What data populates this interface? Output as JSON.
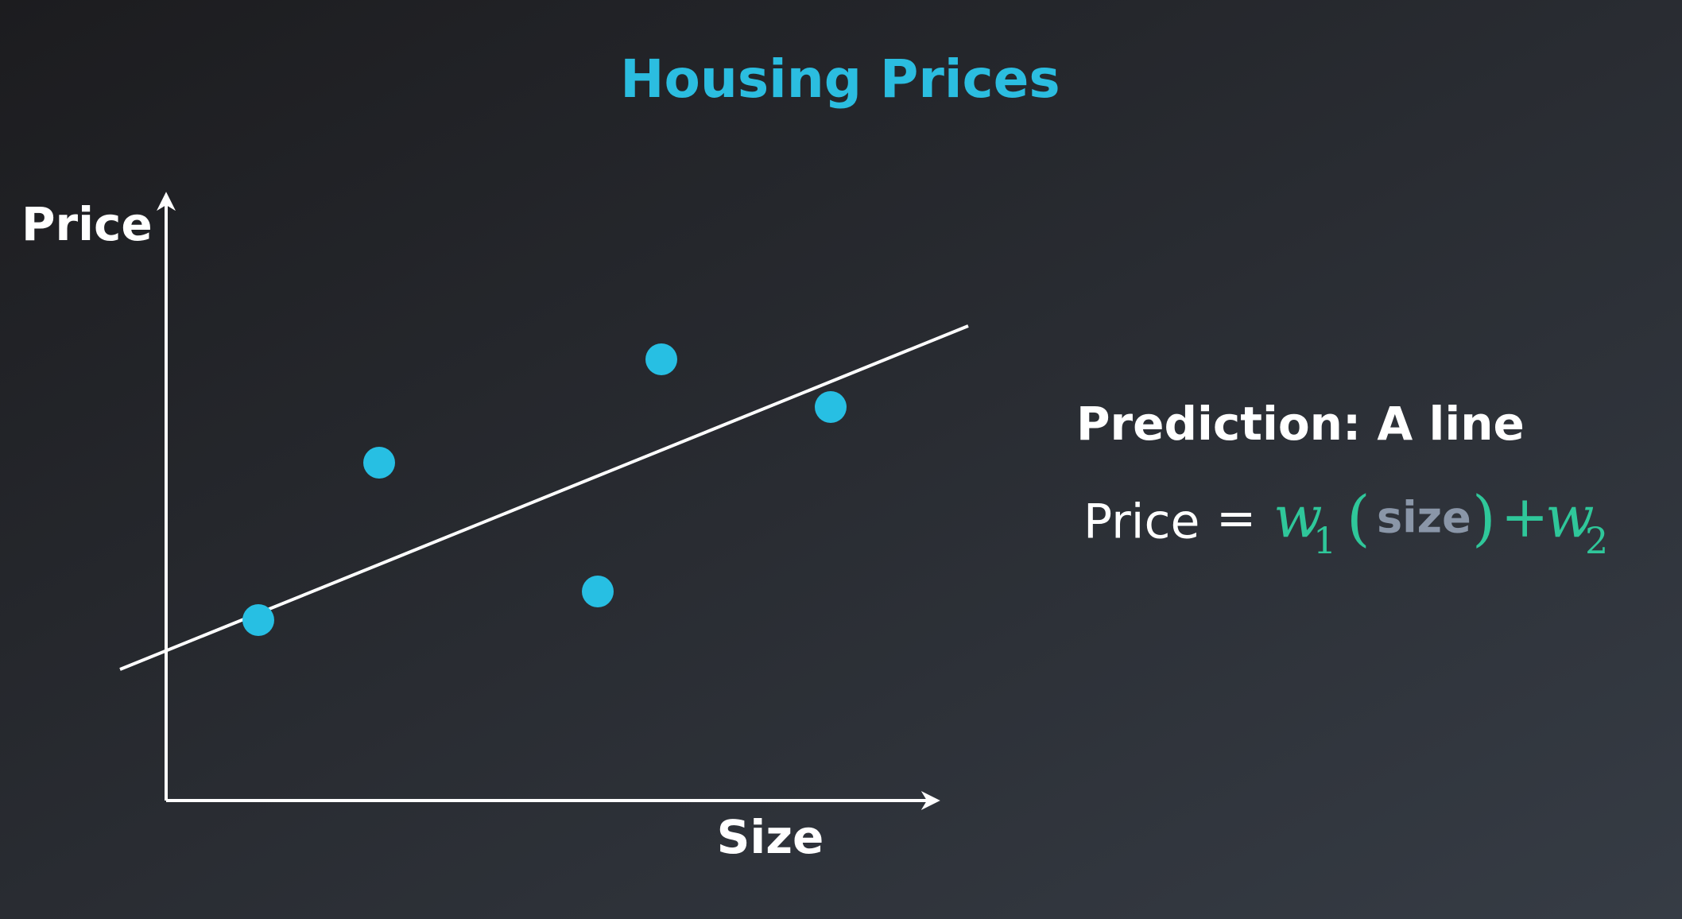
{
  "title": "Housing Prices",
  "axes": {
    "y_label": "Price",
    "x_label": "Size"
  },
  "annotation": {
    "heading": "Prediction: A line",
    "equation": {
      "lhs": "Price",
      "equals": "=",
      "w1": "w",
      "w1_sub": "1",
      "open": "(",
      "arg": "size",
      "close": ")",
      "plus": "+",
      "w2": "w",
      "w2_sub": "2"
    }
  }
}
